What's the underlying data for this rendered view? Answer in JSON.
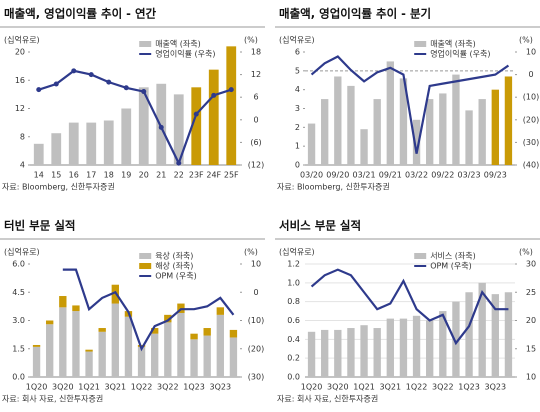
{
  "chart_data": [
    {
      "type": "bar",
      "title": "매출액, 영업이익률 추이 - 연간",
      "ylabel": "(십억유로)",
      "y2label": "(%)",
      "source": "자료: Bloomberg, 신한투자증권",
      "categories": [
        "14",
        "15",
        "16",
        "17",
        "18",
        "19",
        "20",
        "21",
        "22",
        "23F",
        "24F",
        "25F"
      ],
      "series": [
        {
          "name": "매출액 (좌축)",
          "type": "bar",
          "color": "#bfbfbf",
          "colors": [
            "#bfbfbf",
            "#bfbfbf",
            "#bfbfbf",
            "#bfbfbf",
            "#bfbfbf",
            "#bfbfbf",
            "#bfbfbf",
            "#bfbfbf",
            "#bfbfbf",
            "#c99a06",
            "#c99a06",
            "#c99a06"
          ],
          "values": [
            7,
            8.5,
            10,
            10,
            10.3,
            12,
            15,
            15.5,
            14,
            15,
            17.5,
            20.8
          ]
        },
        {
          "name": "영업이익률 (우축)",
          "type": "line",
          "axis": "y2",
          "color": "#2e3a8c",
          "markers": true,
          "values": [
            8,
            9.5,
            13,
            12,
            10,
            8.5,
            7.5,
            -2,
            -11.5,
            1.5,
            6.5,
            8
          ]
        }
      ],
      "ylim": [
        4,
        20
      ],
      "yticks": [
        4,
        8,
        12,
        16,
        20
      ],
      "y2lim": [
        -12,
        18
      ],
      "y2ticks": [
        {
          "value": -12,
          "label": "(12)"
        },
        {
          "value": -6,
          "label": "(6)"
        },
        0,
        6,
        12,
        18
      ],
      "grid": false
    },
    {
      "type": "bar",
      "title": "매출액, 영업이익률 추이 - 분기",
      "ylabel": "(십억유로)",
      "y2label": "(%)",
      "source": "자료: Bloomberg, 신한투자증권",
      "categories": [
        "03/20",
        null,
        "09/20",
        null,
        "03/21",
        null,
        "09/21",
        null,
        "03/22",
        null,
        "09/22",
        null,
        "03/23",
        null,
        "09/23",
        null
      ],
      "series": [
        {
          "name": "매출액 (좌축)",
          "type": "bar",
          "color": "#bfbfbf",
          "colors": [
            "#bfbfbf",
            "#bfbfbf",
            "#bfbfbf",
            "#bfbfbf",
            "#bfbfbf",
            "#bfbfbf",
            "#bfbfbf",
            "#bfbfbf",
            "#bfbfbf",
            "#bfbfbf",
            "#bfbfbf",
            "#bfbfbf",
            "#bfbfbf",
            "#bfbfbf",
            "#c99a06",
            "#c99a06"
          ],
          "values": [
            2.2,
            3.5,
            4.7,
            4.2,
            1.9,
            3.5,
            5.5,
            4.6,
            2.4,
            3.5,
            3.8,
            4.8,
            2.9,
            3.5,
            4.0,
            4.7
          ]
        },
        {
          "name": "영업이익률 (우축)",
          "type": "line",
          "axis": "y2",
          "color": "#2e3a8c",
          "values": [
            0,
            5,
            8,
            2,
            -3,
            1,
            3,
            0,
            -35,
            -5,
            -4,
            -3,
            -2,
            -1,
            0,
            4
          ]
        }
      ],
      "hline": 5,
      "ylim": [
        0,
        6
      ],
      "yticks": [
        0,
        1,
        2,
        3,
        4,
        5,
        6
      ],
      "y2lim": [
        -40,
        10
      ],
      "y2ticks": [
        {
          "value": -40,
          "label": "(40)"
        },
        {
          "value": -30,
          "label": "(30)"
        },
        {
          "value": -20,
          "label": "(20)"
        },
        {
          "value": -10,
          "label": "(10)"
        },
        0,
        10
      ],
      "grid": false
    },
    {
      "type": "bar",
      "title": "터빈 부문 실적",
      "ylabel": "(십억유로)",
      "y2label": "(%)",
      "source": "자료: 회사 자료, 신한투자증권",
      "categories": [
        "1Q20",
        null,
        "3Q20",
        null,
        "1Q21",
        null,
        "3Q21",
        null,
        "1Q22",
        null,
        "3Q22",
        null,
        "1Q23",
        null,
        "3Q23",
        null
      ],
      "series": [
        {
          "name": "육상 (좌축)",
          "type": "bar",
          "color": "#bfbfbf",
          "values": [
            1.6,
            2.8,
            3.7,
            3.5,
            1.35,
            2.4,
            3.9,
            3.2,
            1.6,
            2.3,
            2.9,
            3.4,
            2.0,
            2.2,
            3.3,
            2.1
          ]
        },
        {
          "name": "해상 (좌축)",
          "type": "bar",
          "color": "#c99a06",
          "values": [
            0.1,
            0.2,
            0.6,
            0.3,
            0.1,
            0.2,
            1.0,
            0.3,
            0.1,
            0.3,
            0.4,
            0.5,
            0.3,
            0.4,
            0.4,
            0.4
          ]
        },
        {
          "name": "OPM (우축)",
          "type": "line",
          "axis": "y2",
          "color": "#2e3a8c",
          "values": [
            null,
            null,
            8,
            8,
            -6,
            -2,
            0,
            -7,
            -20,
            -12,
            -10,
            -6,
            -6,
            -5,
            -2,
            -8
          ]
        }
      ],
      "ylim": [
        0,
        6
      ],
      "yticks": [
        {
          "value": 0,
          "label": "0.0"
        },
        1.5,
        {
          "value": 3,
          "label": "3.0"
        },
        4.5,
        {
          "value": 6,
          "label": "6.0"
        }
      ],
      "y2lim": [
        -30,
        10
      ],
      "y2ticks": [
        {
          "value": -30,
          "label": "(30)"
        },
        {
          "value": -20,
          "label": "(20)"
        },
        {
          "value": -10,
          "label": "(10)"
        },
        0,
        10
      ],
      "grid": false
    },
    {
      "type": "bar",
      "title": "서비스 부문 실적",
      "ylabel": "(십억유로)",
      "y2label": "(%)",
      "source": "자료: 회사 자료, 신한투자증권",
      "categories": [
        "1Q20",
        null,
        "3Q20",
        null,
        "1Q21",
        null,
        "3Q21",
        null,
        "1Q22",
        null,
        "3Q22",
        null,
        "1Q23",
        null,
        "3Q23",
        null
      ],
      "series": [
        {
          "name": "서비스 (좌축)",
          "type": "bar",
          "color": "#bfbfbf",
          "values": [
            0.48,
            0.5,
            0.5,
            0.52,
            0.55,
            0.52,
            0.62,
            0.62,
            0.65,
            0.6,
            0.7,
            0.8,
            0.9,
            1.0,
            0.88,
            0.9
          ]
        },
        {
          "name": "OPM (우축)",
          "type": "line",
          "axis": "y2",
          "color": "#2e3a8c",
          "values": [
            26,
            28,
            29,
            28,
            25,
            22,
            23,
            27,
            22,
            20,
            21,
            16,
            19,
            25,
            22,
            22
          ]
        }
      ],
      "ylim": [
        0,
        1.2
      ],
      "yticks": [
        {
          "value": 0,
          "label": "0.0"
        },
        0.2,
        0.4,
        0.6,
        0.8,
        {
          "value": 1,
          "label": "1.0"
        },
        1.2
      ],
      "y2lim": [
        10,
        30
      ],
      "y2ticks": [
        10,
        15,
        20,
        25,
        30
      ],
      "grid": true
    }
  ]
}
